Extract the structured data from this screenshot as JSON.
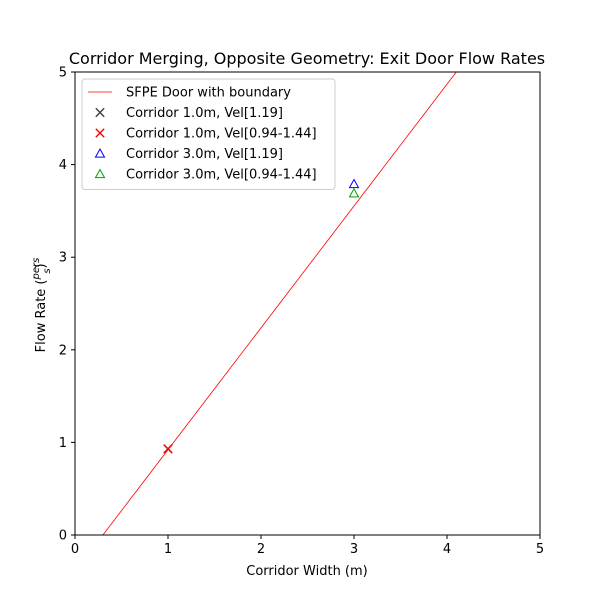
{
  "chart_data": {
    "type": "scatter",
    "title": "Corridor Merging, Opposite Geometry: Exit Door Flow Rates",
    "xlabel": "Corridor Width (m)",
    "ylabel_prefix": "Flow Rate (",
    "ylabel_num": "pers",
    "ylabel_den": "s",
    "ylabel_suffix": ")",
    "xlim": [
      0,
      5
    ],
    "ylim": [
      0,
      5
    ],
    "xticks": [
      0,
      1,
      2,
      3,
      4,
      5
    ],
    "yticks": [
      0,
      1,
      2,
      3,
      4,
      5
    ],
    "grid": false,
    "legend_position": "top-left",
    "line": {
      "name": "SFPE Door with boundary",
      "color": "#ff0000",
      "x": [
        0.3,
        4.1
      ],
      "y": [
        0.0,
        5.0
      ]
    },
    "series": [
      {
        "name": "Corridor 1.0m, Vel[1.19]",
        "marker": "x",
        "color": "#404040",
        "x": [
          1.0
        ],
        "y": [
          0.93
        ]
      },
      {
        "name": "Corridor 1.0m, Vel[0.94-1.44]",
        "marker": "x",
        "color": "#ff0000",
        "x": [
          1.0
        ],
        "y": [
          0.93
        ]
      },
      {
        "name": "Corridor 3.0m, Vel[1.19]",
        "marker": "triangle",
        "color": "#0000ff",
        "x": [
          3.0
        ],
        "y": [
          3.79
        ]
      },
      {
        "name": "Corridor 3.0m, Vel[0.94-1.44]",
        "marker": "triangle",
        "color": "#00a000",
        "x": [
          3.0
        ],
        "y": [
          3.69
        ]
      }
    ]
  }
}
